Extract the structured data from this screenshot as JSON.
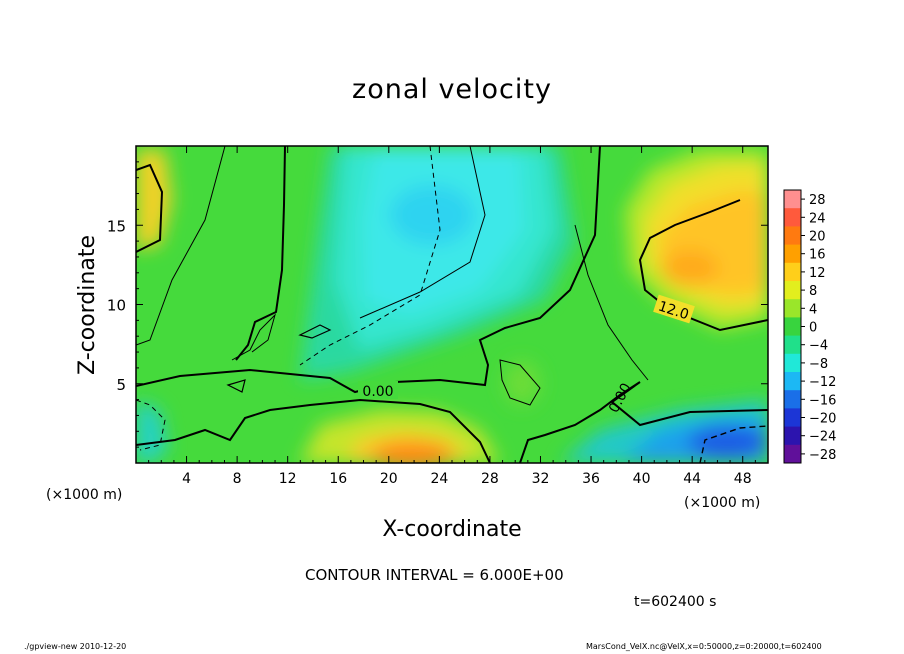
{
  "chart_data": {
    "type": "heatmap",
    "title": "zonal velocity",
    "xlabel": "X-coordinate",
    "ylabel": "Z-coordinate",
    "x_unit": "(×1000 m)",
    "y_unit": "(×1000 m)",
    "xlim": [
      0,
      50
    ],
    "ylim": [
      0,
      20
    ],
    "x_ticks": [
      4,
      8,
      12,
      16,
      20,
      24,
      28,
      32,
      36,
      40,
      44,
      48
    ],
    "y_ticks": [
      5,
      10,
      15
    ],
    "colorbar": {
      "levels": [
        28,
        24,
        20,
        16,
        12,
        8,
        4,
        0,
        -4,
        -8,
        -12,
        -16,
        -20,
        -24,
        -28
      ],
      "colors": [
        "#ff8f8f",
        "#ff5a3c",
        "#ff7a10",
        "#ffa000",
        "#ffcf1a",
        "#e2ee1e",
        "#9ae62a",
        "#38d43e",
        "#20e08a",
        "#20e8d8",
        "#1cb8f4",
        "#1a6fe8",
        "#1c36d6",
        "#2c14ae",
        "#60109a"
      ]
    },
    "contour_labels": [
      "12.0",
      "0.00",
      "0.00"
    ],
    "contour_interval": "CONTOUR INTERVAL = 6.000E+00",
    "time": "t=602400 s"
  },
  "footer": {
    "left": "./gpview-new  2010-12-20",
    "right": "MarsCond_VelX.nc@VelX,x=0:50000,z=0:20000,t=602400"
  }
}
